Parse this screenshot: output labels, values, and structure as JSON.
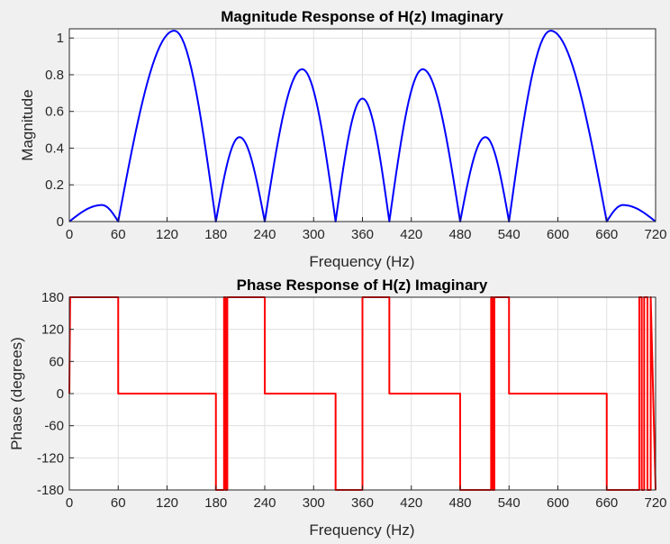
{
  "chart_data": [
    {
      "type": "line",
      "title": "Magnitude Response of H(z) Imaginary",
      "xlabel": "Frequency (Hz)",
      "ylabel": "Magnitude",
      "xlim": [
        0,
        720
      ],
      "ylim": [
        0,
        1.05
      ],
      "xticks": [
        "0",
        "60",
        "120",
        "180",
        "240",
        "300",
        "360",
        "420",
        "480",
        "540",
        "600",
        "660",
        "720"
      ],
      "yticks": [
        "0",
        "0.2",
        "0.4",
        "0.6",
        "0.8",
        "1"
      ],
      "grid": true,
      "color": "#0000ff",
      "series": [
        {
          "name": "Magnitude",
          "lobes": [
            {
              "start": 0,
              "end": 60,
              "peak_x": 40,
              "peak": 0.09
            },
            {
              "start": 60,
              "end": 180,
              "peak_x": 129,
              "peak": 1.04
            },
            {
              "start": 180,
              "end": 240,
              "peak_x": 209,
              "peak": 0.46
            },
            {
              "start": 240,
              "end": 327,
              "peak_x": 286,
              "peak": 0.83
            },
            {
              "start": 327,
              "end": 393,
              "peak_x": 360,
              "peak": 0.67
            },
            {
              "start": 393,
              "end": 480,
              "peak_x": 434,
              "peak": 0.83
            },
            {
              "start": 480,
              "end": 540,
              "peak_x": 511,
              "peak": 0.46
            },
            {
              "start": 540,
              "end": 660,
              "peak_x": 591,
              "peak": 1.04
            },
            {
              "start": 660,
              "end": 720,
              "peak_x": 680,
              "peak": 0.09
            }
          ]
        }
      ]
    },
    {
      "type": "line",
      "title": "Phase Response of H(z) Imaginary",
      "xlabel": "Frequency (Hz)",
      "ylabel": "Phase (degrees)",
      "xlim": [
        0,
        720
      ],
      "ylim": [
        -180,
        180
      ],
      "xticks": [
        "0",
        "60",
        "120",
        "180",
        "240",
        "300",
        "360",
        "420",
        "480",
        "540",
        "600",
        "660",
        "720"
      ],
      "yticks": [
        "-180",
        "-120",
        "-60",
        "0",
        "60",
        "120",
        "180"
      ],
      "grid": true,
      "color": "#ff0000",
      "series": [
        {
          "name": "Phase",
          "x": [
            0,
            1,
            60,
            60,
            180,
            180,
            190,
            190,
            192,
            192,
            194,
            194,
            196,
            196,
            240,
            240,
            327,
            327,
            360,
            360,
            393,
            393,
            480,
            480,
            518,
            518,
            520,
            520,
            522,
            522,
            524,
            524,
            540,
            540,
            660,
            660,
            700,
            700,
            703,
            703,
            706,
            706,
            710,
            710,
            714,
            714,
            720
          ],
          "y": [
            0,
            180,
            180,
            0,
            0,
            -180,
            -180,
            180,
            180,
            -180,
            -180,
            180,
            180,
            180,
            180,
            0,
            0,
            -180,
            -180,
            180,
            180,
            0,
            0,
            -180,
            -180,
            180,
            180,
            -180,
            -180,
            180,
            180,
            180,
            180,
            0,
            0,
            -180,
            -180,
            180,
            180,
            -180,
            -180,
            180,
            180,
            -180,
            -180,
            180,
            -180
          ]
        }
      ]
    }
  ]
}
